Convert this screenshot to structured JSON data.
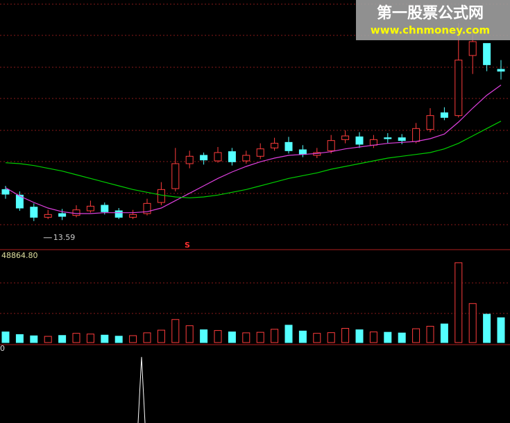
{
  "watermark": {
    "title": "第一股票公式网",
    "url": "www.chnmoney.com"
  },
  "chart_data": {
    "type": "candlestick",
    "ylim": [
      12,
      36
    ],
    "open": [
      17.0,
      16.4,
      15.1,
      14.0,
      14.4,
      14.2,
      14.7,
      15.3,
      14.7,
      14.0,
      14.4,
      15.6,
      17.1,
      19.8,
      20.7,
      20.1,
      21.1,
      20.1,
      20.6,
      21.5,
      22.1,
      21.3,
      20.7,
      21.2,
      22.4,
      22.7,
      21.8,
      22.6,
      22.6,
      22.2,
      23.5,
      25.3,
      25.0,
      31.5,
      32.8,
      30.0
    ],
    "close": [
      16.5,
      15.0,
      14.0,
      14.3,
      14.1,
      14.8,
      15.2,
      14.6,
      14.0,
      14.3,
      15.5,
      17.0,
      19.8,
      20.6,
      20.2,
      21.0,
      20.0,
      20.7,
      21.4,
      22.0,
      21.2,
      20.8,
      21.0,
      22.3,
      22.8,
      21.9,
      22.4,
      22.5,
      22.3,
      23.6,
      25.0,
      24.8,
      31.0,
      33.0,
      30.5,
      29.8
    ],
    "high": [
      17.4,
      16.8,
      15.5,
      14.8,
      14.9,
      15.3,
      15.8,
      15.6,
      15.0,
      14.8,
      16.0,
      17.8,
      21.5,
      21.2,
      21.0,
      21.6,
      21.5,
      21.2,
      22.0,
      22.6,
      22.7,
      21.8,
      21.5,
      22.9,
      23.4,
      23.2,
      22.9,
      23.1,
      23.0,
      24.2,
      25.8,
      25.9,
      35.0,
      34.0,
      32.8,
      31.0
    ],
    "low": [
      16.0,
      14.7,
      13.59,
      13.8,
      13.7,
      14.0,
      14.5,
      14.3,
      13.8,
      13.8,
      14.2,
      15.3,
      16.8,
      19.3,
      19.7,
      19.9,
      19.6,
      19.8,
      20.3,
      21.2,
      20.9,
      20.5,
      20.4,
      20.9,
      22.0,
      21.5,
      21.5,
      22.0,
      21.9,
      22.0,
      23.2,
      24.5,
      24.8,
      29.5,
      29.8,
      28.9
    ],
    "low_annotation": "13.59",
    "signal": "S",
    "up_color": "#ff3c3c",
    "down_color": "#54ffff",
    "series": [
      {
        "color": "#e040e0",
        "values": [
          17.2,
          16.3,
          15.6,
          15.0,
          14.6,
          14.4,
          14.4,
          14.5,
          14.5,
          14.5,
          14.6,
          15.0,
          15.8,
          16.6,
          17.4,
          18.2,
          18.9,
          19.5,
          20.0,
          20.4,
          20.7,
          20.8,
          20.9,
          21.1,
          21.4,
          21.6,
          21.8,
          22.0,
          22.1,
          22.2,
          22.5,
          23.0,
          24.3,
          25.8,
          27.2,
          28.3
        ]
      },
      {
        "color": "#00d000",
        "values": [
          19.9,
          19.8,
          19.6,
          19.3,
          19.0,
          18.6,
          18.2,
          17.8,
          17.4,
          17.0,
          16.7,
          16.4,
          16.2,
          16.1,
          16.2,
          16.4,
          16.7,
          17.0,
          17.4,
          17.8,
          18.2,
          18.5,
          18.8,
          19.2,
          19.5,
          19.8,
          20.1,
          20.4,
          20.6,
          20.8,
          21.0,
          21.4,
          22.0,
          22.8,
          23.6,
          24.4
        ]
      }
    ],
    "volume": {
      "ylim": [
        0,
        48864.8
      ],
      "yticks": [
        {
          "value": 48864.8,
          "label": "48864.80"
        }
      ],
      "values": [
        6000,
        4500,
        3800,
        3500,
        4000,
        5200,
        4800,
        4200,
        3600,
        3900,
        5500,
        7000,
        13000,
        9500,
        7200,
        6800,
        6000,
        5500,
        5800,
        7500,
        9800,
        6500,
        5200,
        5600,
        8000,
        7200,
        6000,
        5800,
        5400,
        7800,
        9200,
        10500,
        45000,
        22000,
        16000,
        14000
      ]
    },
    "indicator": {
      "ylim": [
        -10,
        0
      ],
      "yticks": [
        0
      ],
      "values": [
        null,
        null,
        null,
        null,
        null,
        null,
        null,
        null,
        null,
        null,
        -1.1,
        null,
        null,
        null,
        null,
        null,
        null,
        null,
        null,
        null,
        null,
        null,
        null,
        null,
        null,
        null,
        null,
        null,
        null,
        null,
        null,
        null,
        null,
        null,
        null,
        null
      ]
    }
  }
}
